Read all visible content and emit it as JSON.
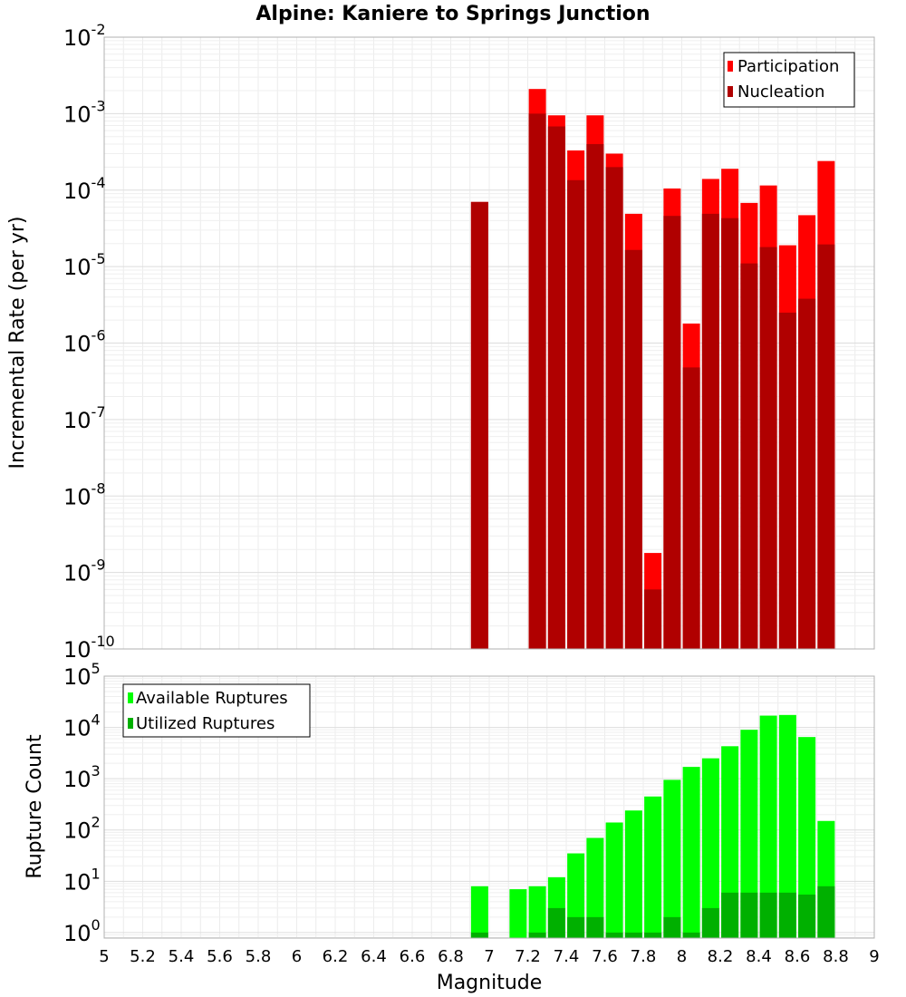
{
  "chart_data": [
    {
      "type": "bar",
      "title": "Alpine: Kaniere to Springs Junction",
      "ylabel": "Incremental Rate (per yr)",
      "xlabel": "",
      "xlim": [
        5,
        9
      ],
      "ylim": [
        1e-10,
        0.01
      ],
      "yscale": "log",
      "grid": true,
      "legend_position": "top-right",
      "y_ticks": [
        {
          "base": "10",
          "exp": "-10",
          "value": 1e-10
        },
        {
          "base": "10",
          "exp": "-9",
          "value": 1e-09
        },
        {
          "base": "10",
          "exp": "-8",
          "value": 1e-08
        },
        {
          "base": "10",
          "exp": "-7",
          "value": 1e-07
        },
        {
          "base": "10",
          "exp": "-6",
          "value": 1e-06
        },
        {
          "base": "10",
          "exp": "-5",
          "value": 1e-05
        },
        {
          "base": "10",
          "exp": "-4",
          "value": 0.0001
        },
        {
          "base": "10",
          "exp": "-3",
          "value": 0.001
        },
        {
          "base": "10",
          "exp": "-2",
          "value": 0.01
        }
      ],
      "x": [
        6.95,
        7.25,
        7.35,
        7.45,
        7.55,
        7.65,
        7.75,
        7.85,
        7.95,
        8.05,
        8.15,
        8.25,
        8.35,
        8.45,
        8.55,
        8.65,
        8.75
      ],
      "series": [
        {
          "name": "Participation",
          "color": "#ff0000",
          "values": [
            7e-05,
            0.0021,
            0.00095,
            0.00033,
            0.00095,
            0.0003,
            4.9e-05,
            1.8e-09,
            0.000105,
            1.8e-06,
            0.00014,
            0.00019,
            6.8e-05,
            0.000115,
            1.9e-05,
            4.7e-05,
            0.00024
          ]
        },
        {
          "name": "Nucleation",
          "color": "#b00000",
          "values": [
            7e-05,
            0.001,
            0.00068,
            0.000135,
            0.0004,
            0.0002,
            1.65e-05,
            6e-10,
            4.6e-05,
            4.8e-07,
            4.9e-05,
            4.3e-05,
            1.1e-05,
            1.8e-05,
            2.5e-06,
            3.8e-06,
            1.95e-05
          ]
        }
      ]
    },
    {
      "type": "bar",
      "title": "",
      "ylabel": "Rupture Count",
      "xlabel": "Magnitude",
      "xlim": [
        5,
        9
      ],
      "ylim": [
        0.78,
        100000.0
      ],
      "yscale": "log",
      "grid": true,
      "legend_position": "top-left",
      "x_ticks": [
        "5",
        "5.2",
        "5.4",
        "5.6",
        "5.8",
        "6",
        "6.2",
        "6.4",
        "6.6",
        "6.8",
        "7",
        "7.2",
        "7.4",
        "7.6",
        "7.8",
        "8",
        "8.2",
        "8.4",
        "8.6",
        "8.8",
        "9"
      ],
      "y_ticks": [
        {
          "base": "10",
          "exp": "0",
          "value": 1
        },
        {
          "base": "10",
          "exp": "1",
          "value": 10
        },
        {
          "base": "10",
          "exp": "2",
          "value": 100
        },
        {
          "base": "10",
          "exp": "3",
          "value": 1000
        },
        {
          "base": "10",
          "exp": "4",
          "value": 10000
        },
        {
          "base": "10",
          "exp": "5",
          "value": 100000
        }
      ],
      "x": [
        6.95,
        7.15,
        7.25,
        7.35,
        7.45,
        7.55,
        7.65,
        7.75,
        7.85,
        7.95,
        8.05,
        8.15,
        8.25,
        8.35,
        8.45,
        8.55,
        8.65,
        8.75
      ],
      "series": [
        {
          "name": "Available Ruptures",
          "color": "#00ff00",
          "values": [
            8,
            7,
            8,
            12,
            35,
            70,
            140,
            240,
            450,
            950,
            1700,
            2500,
            4300,
            9000,
            17000,
            17500,
            6500,
            150
          ]
        },
        {
          "name": "Utilized Ruptures",
          "color": "#00b000",
          "values": [
            1,
            0,
            1,
            3,
            2,
            2,
            1,
            1,
            1,
            2,
            1,
            3,
            6,
            6,
            6,
            6,
            5.5,
            8
          ]
        }
      ]
    }
  ]
}
